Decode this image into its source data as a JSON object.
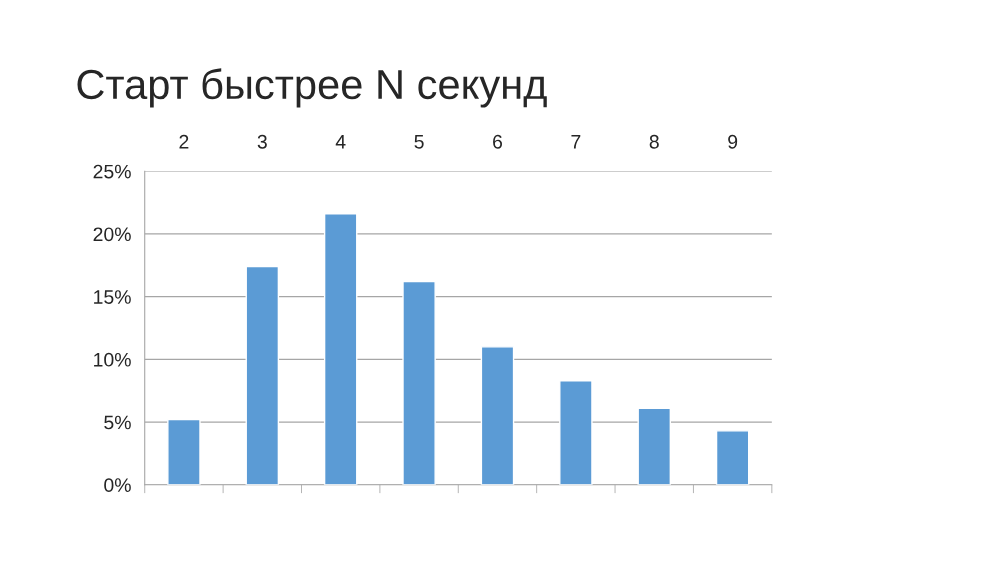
{
  "chart_data": {
    "type": "bar",
    "title": "Старт быстрее N секунд",
    "categories": [
      "2",
      "3",
      "4",
      "5",
      "6",
      "7",
      "8",
      "9"
    ],
    "values": [
      5.2,
      17.4,
      21.6,
      16.2,
      11.0,
      8.3,
      6.1,
      4.3
    ],
    "color": "#5b9bd5",
    "ylim": [
      0,
      25
    ],
    "yticks": [
      {
        "value": 0,
        "label": "0%"
      },
      {
        "value": 5,
        "label": "5%"
      },
      {
        "value": 10,
        "label": "10%"
      },
      {
        "value": 15,
        "label": "15%"
      },
      {
        "value": 20,
        "label": "20%"
      },
      {
        "value": 25,
        "label": "25%"
      }
    ],
    "grid": "y",
    "legend": false
  }
}
